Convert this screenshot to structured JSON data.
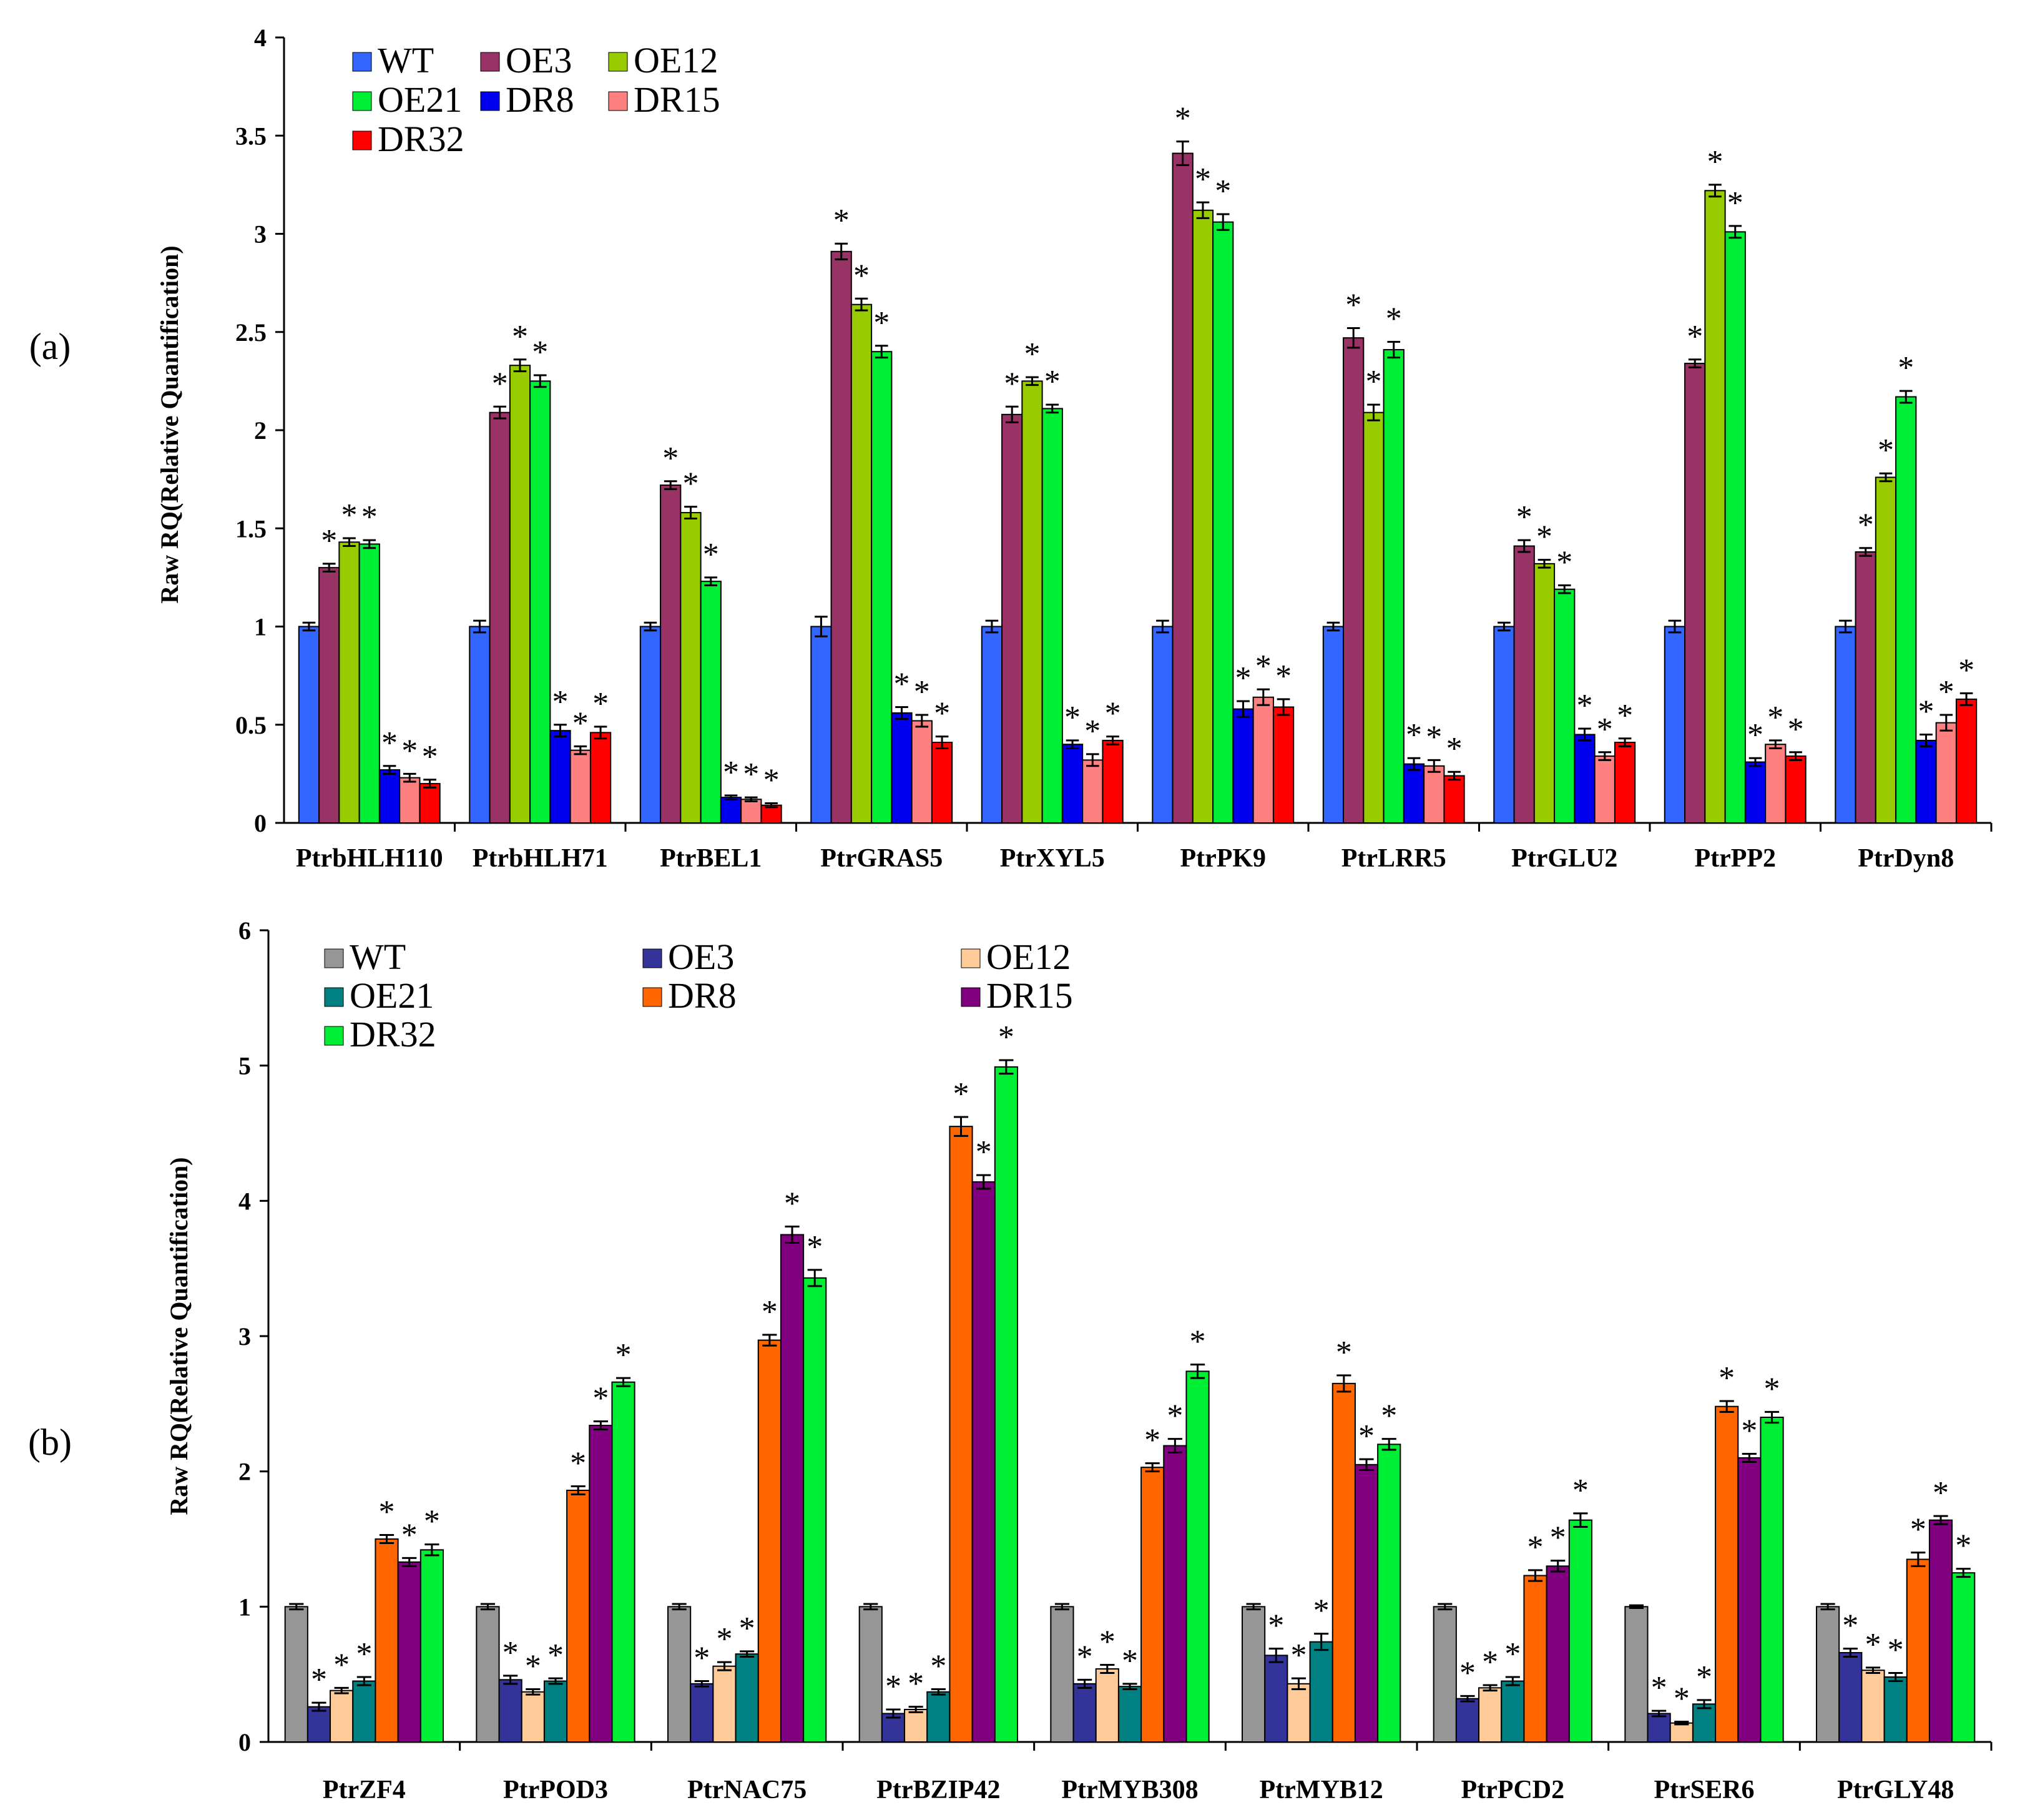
{
  "chart_data": [
    {
      "type": "bar",
      "panel_label": "(a)",
      "ylabel": "Raw RQ(Relative Quantification)",
      "ylim": [
        0,
        4
      ],
      "yticks": [
        "0",
        "0.5",
        "1",
        "1.5",
        "2",
        "2.5",
        "3",
        "3.5",
        "4"
      ],
      "yticks_values": [
        0,
        0.5,
        1,
        1.5,
        2,
        2.5,
        3,
        3.5,
        4
      ],
      "legend_position": "top-left",
      "categories": [
        "PtrbHLH110",
        "PtrbHLH71",
        "PtrBEL1",
        "PtrGRAS5",
        "PtrXYL5",
        "PtrPK9",
        "PtrLRR5",
        "PtrGLU2",
        "PtrPP2",
        "PtrDyn8"
      ],
      "series": [
        {
          "name": "WT",
          "color": "#3366ff",
          "values": [
            1.0,
            1.0,
            1.0,
            1.0,
            1.0,
            1.0,
            1.0,
            1.0,
            1.0,
            1.0
          ],
          "errors": [
            0.02,
            0.03,
            0.02,
            0.05,
            0.03,
            0.03,
            0.02,
            0.02,
            0.03,
            0.03
          ],
          "significant": [
            false,
            false,
            false,
            false,
            false,
            false,
            false,
            false,
            false,
            false
          ]
        },
        {
          "name": "OE3",
          "color": "#993366",
          "values": [
            1.3,
            2.09,
            1.72,
            2.91,
            2.08,
            3.41,
            2.47,
            1.41,
            2.34,
            1.38
          ],
          "errors": [
            0.02,
            0.03,
            0.02,
            0.04,
            0.04,
            0.06,
            0.05,
            0.03,
            0.02,
            0.02
          ],
          "significant": [
            true,
            true,
            true,
            true,
            true,
            true,
            true,
            true,
            true,
            true
          ]
        },
        {
          "name": "OE12",
          "color": "#99cc00",
          "values": [
            1.43,
            2.33,
            1.58,
            2.64,
            2.25,
            3.12,
            2.09,
            1.32,
            3.22,
            1.76
          ],
          "errors": [
            0.02,
            0.03,
            0.03,
            0.03,
            0.02,
            0.04,
            0.04,
            0.02,
            0.03,
            0.02
          ],
          "significant": [
            true,
            true,
            true,
            true,
            true,
            true,
            true,
            true,
            true,
            true
          ]
        },
        {
          "name": "OE21",
          "color": "#00ee33",
          "values": [
            1.42,
            2.25,
            1.23,
            2.4,
            2.11,
            3.06,
            2.41,
            1.19,
            3.01,
            2.17
          ],
          "errors": [
            0.02,
            0.03,
            0.02,
            0.03,
            0.02,
            0.04,
            0.04,
            0.02,
            0.03,
            0.03
          ],
          "significant": [
            true,
            true,
            true,
            true,
            true,
            true,
            true,
            true,
            true,
            true
          ]
        },
        {
          "name": "DR8",
          "color": "#0000ee",
          "values": [
            0.27,
            0.47,
            0.13,
            0.56,
            0.4,
            0.58,
            0.3,
            0.45,
            0.31,
            0.42
          ],
          "errors": [
            0.02,
            0.03,
            0.01,
            0.03,
            0.02,
            0.04,
            0.03,
            0.03,
            0.02,
            0.03
          ],
          "significant": [
            true,
            true,
            true,
            true,
            true,
            true,
            true,
            true,
            true,
            true
          ]
        },
        {
          "name": "DR15",
          "color": "#ff8080",
          "values": [
            0.23,
            0.37,
            0.12,
            0.52,
            0.32,
            0.64,
            0.29,
            0.34,
            0.4,
            0.51
          ],
          "errors": [
            0.02,
            0.02,
            0.01,
            0.03,
            0.03,
            0.04,
            0.03,
            0.02,
            0.02,
            0.04
          ],
          "significant": [
            true,
            true,
            true,
            true,
            true,
            true,
            true,
            true,
            true,
            true
          ]
        },
        {
          "name": "DR32",
          "color": "#ff0000",
          "values": [
            0.2,
            0.46,
            0.09,
            0.41,
            0.42,
            0.59,
            0.24,
            0.41,
            0.34,
            0.63
          ],
          "errors": [
            0.02,
            0.03,
            0.01,
            0.03,
            0.02,
            0.04,
            0.02,
            0.02,
            0.02,
            0.03
          ],
          "significant": [
            true,
            true,
            true,
            true,
            true,
            true,
            true,
            true,
            true,
            true
          ]
        }
      ]
    },
    {
      "type": "bar",
      "panel_label": "(b)",
      "ylabel": "Raw RQ(Relative Quantification)",
      "ylim": [
        0,
        6
      ],
      "yticks": [
        "0",
        "1",
        "2",
        "3",
        "4",
        "5",
        "6"
      ],
      "yticks_values": [
        0,
        1,
        2,
        3,
        4,
        5,
        6
      ],
      "legend_position": "top-left",
      "categories": [
        "PtrZF4",
        "PtrPOD3",
        "PtrNAC75",
        "PtrBZIP42",
        "PtrMYB308",
        "PtrMYB12",
        "PtrPCD2",
        "PtrSER6",
        "PtrGLY48"
      ],
      "series": [
        {
          "name": "WT",
          "color": "#969696",
          "values": [
            1.0,
            1.0,
            1.0,
            1.0,
            1.0,
            1.0,
            1.0,
            1.0,
            1.0
          ],
          "errors": [
            0.02,
            0.02,
            0.02,
            0.02,
            0.02,
            0.02,
            0.02,
            0.01,
            0.02
          ],
          "significant": [
            false,
            false,
            false,
            false,
            false,
            false,
            false,
            false,
            false
          ]
        },
        {
          "name": "OE3",
          "color": "#333399",
          "values": [
            0.26,
            0.46,
            0.43,
            0.21,
            0.43,
            0.64,
            0.32,
            0.21,
            0.66
          ],
          "errors": [
            0.03,
            0.03,
            0.02,
            0.03,
            0.03,
            0.05,
            0.02,
            0.02,
            0.03
          ],
          "significant": [
            true,
            true,
            true,
            true,
            true,
            true,
            true,
            true,
            true
          ]
        },
        {
          "name": "OE12",
          "color": "#ffcc99",
          "values": [
            0.38,
            0.37,
            0.56,
            0.24,
            0.54,
            0.43,
            0.4,
            0.14,
            0.53
          ],
          "errors": [
            0.02,
            0.02,
            0.03,
            0.02,
            0.03,
            0.04,
            0.02,
            0.01,
            0.02
          ],
          "significant": [
            true,
            true,
            true,
            true,
            true,
            true,
            true,
            true,
            true
          ]
        },
        {
          "name": "OE21",
          "color": "#008080",
          "values": [
            0.45,
            0.45,
            0.65,
            0.37,
            0.41,
            0.74,
            0.45,
            0.28,
            0.48
          ],
          "errors": [
            0.03,
            0.02,
            0.02,
            0.02,
            0.02,
            0.06,
            0.03,
            0.03,
            0.03
          ],
          "significant": [
            true,
            true,
            true,
            true,
            true,
            true,
            true,
            true,
            true
          ]
        },
        {
          "name": "DR8",
          "color": "#ff6600",
          "values": [
            1.5,
            1.86,
            2.97,
            4.55,
            2.03,
            2.65,
            1.23,
            2.48,
            1.35
          ],
          "errors": [
            0.03,
            0.03,
            0.04,
            0.07,
            0.03,
            0.06,
            0.04,
            0.04,
            0.05
          ],
          "significant": [
            true,
            true,
            true,
            true,
            true,
            true,
            true,
            true,
            true
          ]
        },
        {
          "name": "DR15",
          "color": "#800080",
          "values": [
            1.33,
            2.34,
            3.75,
            4.14,
            2.19,
            2.05,
            1.3,
            2.1,
            1.64
          ],
          "errors": [
            0.03,
            0.03,
            0.06,
            0.05,
            0.05,
            0.04,
            0.04,
            0.03,
            0.03
          ],
          "significant": [
            true,
            true,
            true,
            true,
            true,
            true,
            true,
            true,
            true
          ]
        },
        {
          "name": "DR32",
          "color": "#00ee33",
          "values": [
            1.42,
            2.66,
            3.43,
            4.99,
            2.74,
            2.2,
            1.64,
            2.4,
            1.25
          ],
          "errors": [
            0.04,
            0.03,
            0.06,
            0.05,
            0.05,
            0.04,
            0.05,
            0.04,
            0.03
          ],
          "significant": [
            true,
            true,
            true,
            true,
            true,
            true,
            true,
            true,
            true
          ]
        }
      ]
    }
  ],
  "significance_marker": "*"
}
